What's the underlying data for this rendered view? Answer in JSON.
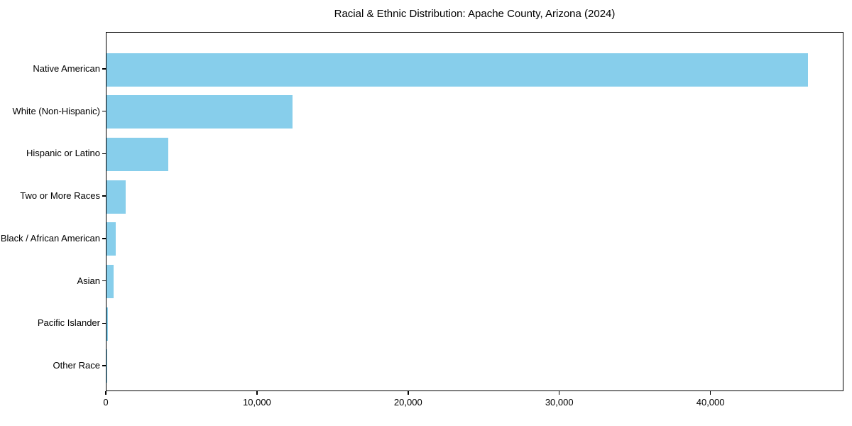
{
  "chart_data": {
    "type": "bar",
    "orientation": "horizontal",
    "title": "Racial & Ethnic Distribution: Apache County, Arizona (2024)",
    "xlabel": "",
    "ylabel": "",
    "categories": [
      "Native American",
      "White (Non-Hispanic)",
      "Hispanic or Latino",
      "Two or More Races",
      "Black / African American",
      "Asian",
      "Pacific Islander",
      "Other Race"
    ],
    "values": [
      46400,
      12300,
      4100,
      1250,
      630,
      470,
      100,
      30
    ],
    "xlim": [
      0,
      48800
    ],
    "xticks": [
      0,
      10000,
      20000,
      30000,
      40000
    ],
    "xtick_labels": [
      "0",
      "10,000",
      "20,000",
      "30,000",
      "40,000"
    ],
    "bar_color": "#87CEEB",
    "grid": false,
    "legend": null
  }
}
